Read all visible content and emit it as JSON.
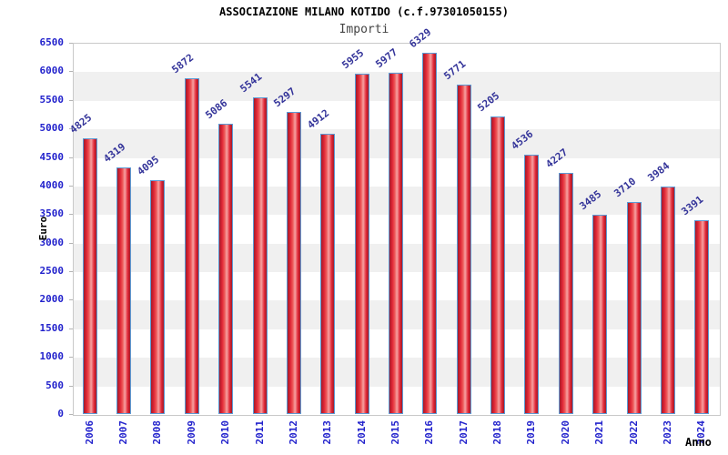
{
  "header": {
    "title": "ASSOCIAZIONE MILANO KOTIDO (c.f.97301050155)",
    "subtitle": "Importi"
  },
  "chart_data": {
    "type": "bar",
    "title": "ASSOCIAZIONE MILANO KOTIDO (c.f.97301050155)",
    "subtitle": "Importi",
    "xlabel": "Anno",
    "ylabel": "Euro",
    "categories": [
      "2006",
      "2007",
      "2008",
      "2009",
      "2010",
      "2011",
      "2012",
      "2013",
      "2014",
      "2015",
      "2016",
      "2017",
      "2018",
      "2019",
      "2020",
      "2021",
      "2022",
      "2023",
      "2024"
    ],
    "values": [
      4825,
      4319,
      4095,
      5872,
      5086,
      5541,
      5297,
      4912,
      5955,
      5977,
      6329,
      5771,
      5205,
      4536,
      4227,
      3485,
      3710,
      3984,
      3391
    ],
    "ylim": [
      0,
      6500
    ],
    "ytick_step": 500,
    "yticks": [
      0,
      500,
      1000,
      1500,
      2000,
      2500,
      3000,
      3500,
      4000,
      4500,
      5000,
      5500,
      6000,
      6500
    ],
    "legend": "none",
    "grid": "alternating horizontal bands every 500",
    "value_labels": "rotated above each bar",
    "colors": {
      "axis_label_color": "#2222cc",
      "value_label_color": "#333399",
      "band_gray": "#f0f0f0",
      "band_white": "#ffffff",
      "bar_border": "#5b9bd5",
      "bar_dark": "#a11c2a",
      "bar_red": "#e02535",
      "bar_highlight": "#f7a2a2",
      "tick_color": "#b4b4b4",
      "plot_border": "#c9c9c9"
    }
  }
}
